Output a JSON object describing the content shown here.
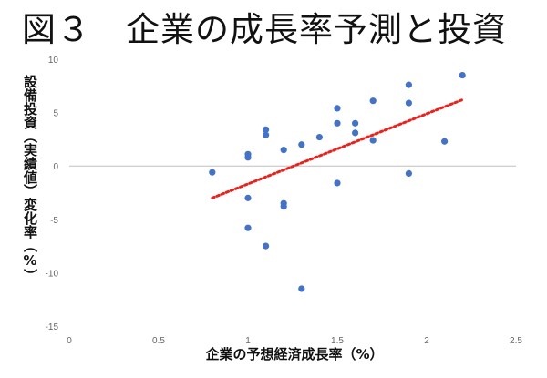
{
  "chart_data": {
    "type": "scatter",
    "title": "図３　企業の成長率予測と投資",
    "xlabel": "企業の予想経済成長率（%）",
    "ylabel": "設備投資（実績値）変化率（%）",
    "xlim": [
      0,
      2.5
    ],
    "ylim": [
      -15,
      10
    ],
    "xticks": [
      "0",
      "0.5",
      "1",
      "1.5",
      "2",
      "2.5"
    ],
    "yticks": [
      "10",
      "5",
      "0",
      "-5",
      "-10",
      "-15"
    ],
    "grid": false,
    "point_color": "#4472C4",
    "trend_color": "#E8231E",
    "points": [
      {
        "x": 0.8,
        "y": -0.6
      },
      {
        "x": 1.0,
        "y": 1.1
      },
      {
        "x": 1.0,
        "y": 0.8
      },
      {
        "x": 1.0,
        "y": -3.0
      },
      {
        "x": 1.0,
        "y": -5.8
      },
      {
        "x": 1.1,
        "y": 3.4
      },
      {
        "x": 1.1,
        "y": 2.9
      },
      {
        "x": 1.1,
        "y": -7.5
      },
      {
        "x": 1.2,
        "y": 1.5
      },
      {
        "x": 1.2,
        "y": -3.5
      },
      {
        "x": 1.2,
        "y": -3.8
      },
      {
        "x": 1.3,
        "y": 2.0
      },
      {
        "x": 1.3,
        "y": -11.5
      },
      {
        "x": 1.4,
        "y": 2.7
      },
      {
        "x": 1.5,
        "y": 5.4
      },
      {
        "x": 1.5,
        "y": 4.0
      },
      {
        "x": 1.5,
        "y": -1.6
      },
      {
        "x": 1.6,
        "y": 4.0
      },
      {
        "x": 1.6,
        "y": 3.1
      },
      {
        "x": 1.7,
        "y": 6.1
      },
      {
        "x": 1.7,
        "y": 2.4
      },
      {
        "x": 1.9,
        "y": 7.6
      },
      {
        "x": 1.9,
        "y": 5.9
      },
      {
        "x": 1.9,
        "y": -0.7
      },
      {
        "x": 2.1,
        "y": 2.3
      },
      {
        "x": 2.2,
        "y": 8.5
      }
    ],
    "trendline": {
      "x": [
        0.8,
        2.2
      ],
      "y": [
        -3.0,
        6.2
      ]
    }
  }
}
